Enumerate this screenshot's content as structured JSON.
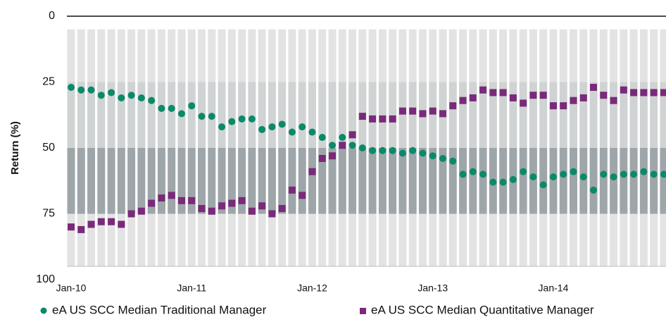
{
  "chart_data": {
    "type": "scatter",
    "ylabel": "Return (%)",
    "categories": [
      "Jan-10",
      null,
      null,
      null,
      null,
      null,
      null,
      null,
      null,
      null,
      null,
      null,
      "Jan-11",
      null,
      null,
      null,
      null,
      null,
      null,
      null,
      null,
      null,
      null,
      null,
      "Jan-12",
      null,
      null,
      null,
      null,
      null,
      null,
      null,
      null,
      null,
      null,
      null,
      "Jan-13",
      null,
      null,
      null,
      null,
      null,
      null,
      null,
      null,
      null,
      null,
      null,
      "Jan-14",
      null,
      null,
      null,
      null,
      null,
      null,
      null,
      null,
      null,
      null,
      null
    ],
    "ylim": [
      100,
      0
    ],
    "yticks": [
      0,
      25,
      50,
      75,
      100
    ],
    "bands": [
      {
        "from": 5,
        "to": 25,
        "color": "#e3e3e3"
      },
      {
        "from": 25,
        "to": 50,
        "color": "#d0d3d3"
      },
      {
        "from": 50,
        "to": 75,
        "color": "#9ea6aa"
      },
      {
        "from": 75,
        "to": 95,
        "color": "#e3e3e3"
      }
    ],
    "series": [
      {
        "name": "eA US SCC Median Traditional Manager",
        "color": "#0a8a6a",
        "marker": "circle",
        "values": [
          27,
          28,
          28,
          30,
          29,
          31,
          30,
          31,
          32,
          35,
          35,
          37,
          34,
          38,
          38,
          42,
          40,
          39,
          39,
          43,
          42,
          41,
          44,
          42,
          44,
          46,
          49,
          46,
          49,
          50,
          51,
          51,
          51,
          52,
          51,
          52,
          53,
          54,
          55,
          60,
          59,
          60,
          63,
          63,
          62,
          59,
          61,
          64,
          61,
          60,
          59,
          61,
          66,
          60,
          61,
          60,
          60,
          59,
          60,
          60
        ]
      },
      {
        "name": "eA US SCC Median Quantitative Manager",
        "color": "#7a2a7a",
        "marker": "square",
        "values": [
          80,
          81,
          79,
          78,
          78,
          79,
          75,
          74,
          71,
          69,
          68,
          70,
          70,
          73,
          74,
          72,
          71,
          70,
          74,
          72,
          75,
          73,
          66,
          68,
          59,
          54,
          53,
          49,
          45,
          38,
          39,
          39,
          39,
          36,
          36,
          37,
          36,
          37,
          34,
          32,
          31,
          28,
          29,
          29,
          31,
          33,
          30,
          30,
          34,
          34,
          32,
          31,
          27,
          30,
          32,
          28,
          29,
          29,
          29,
          29
        ]
      }
    ]
  }
}
